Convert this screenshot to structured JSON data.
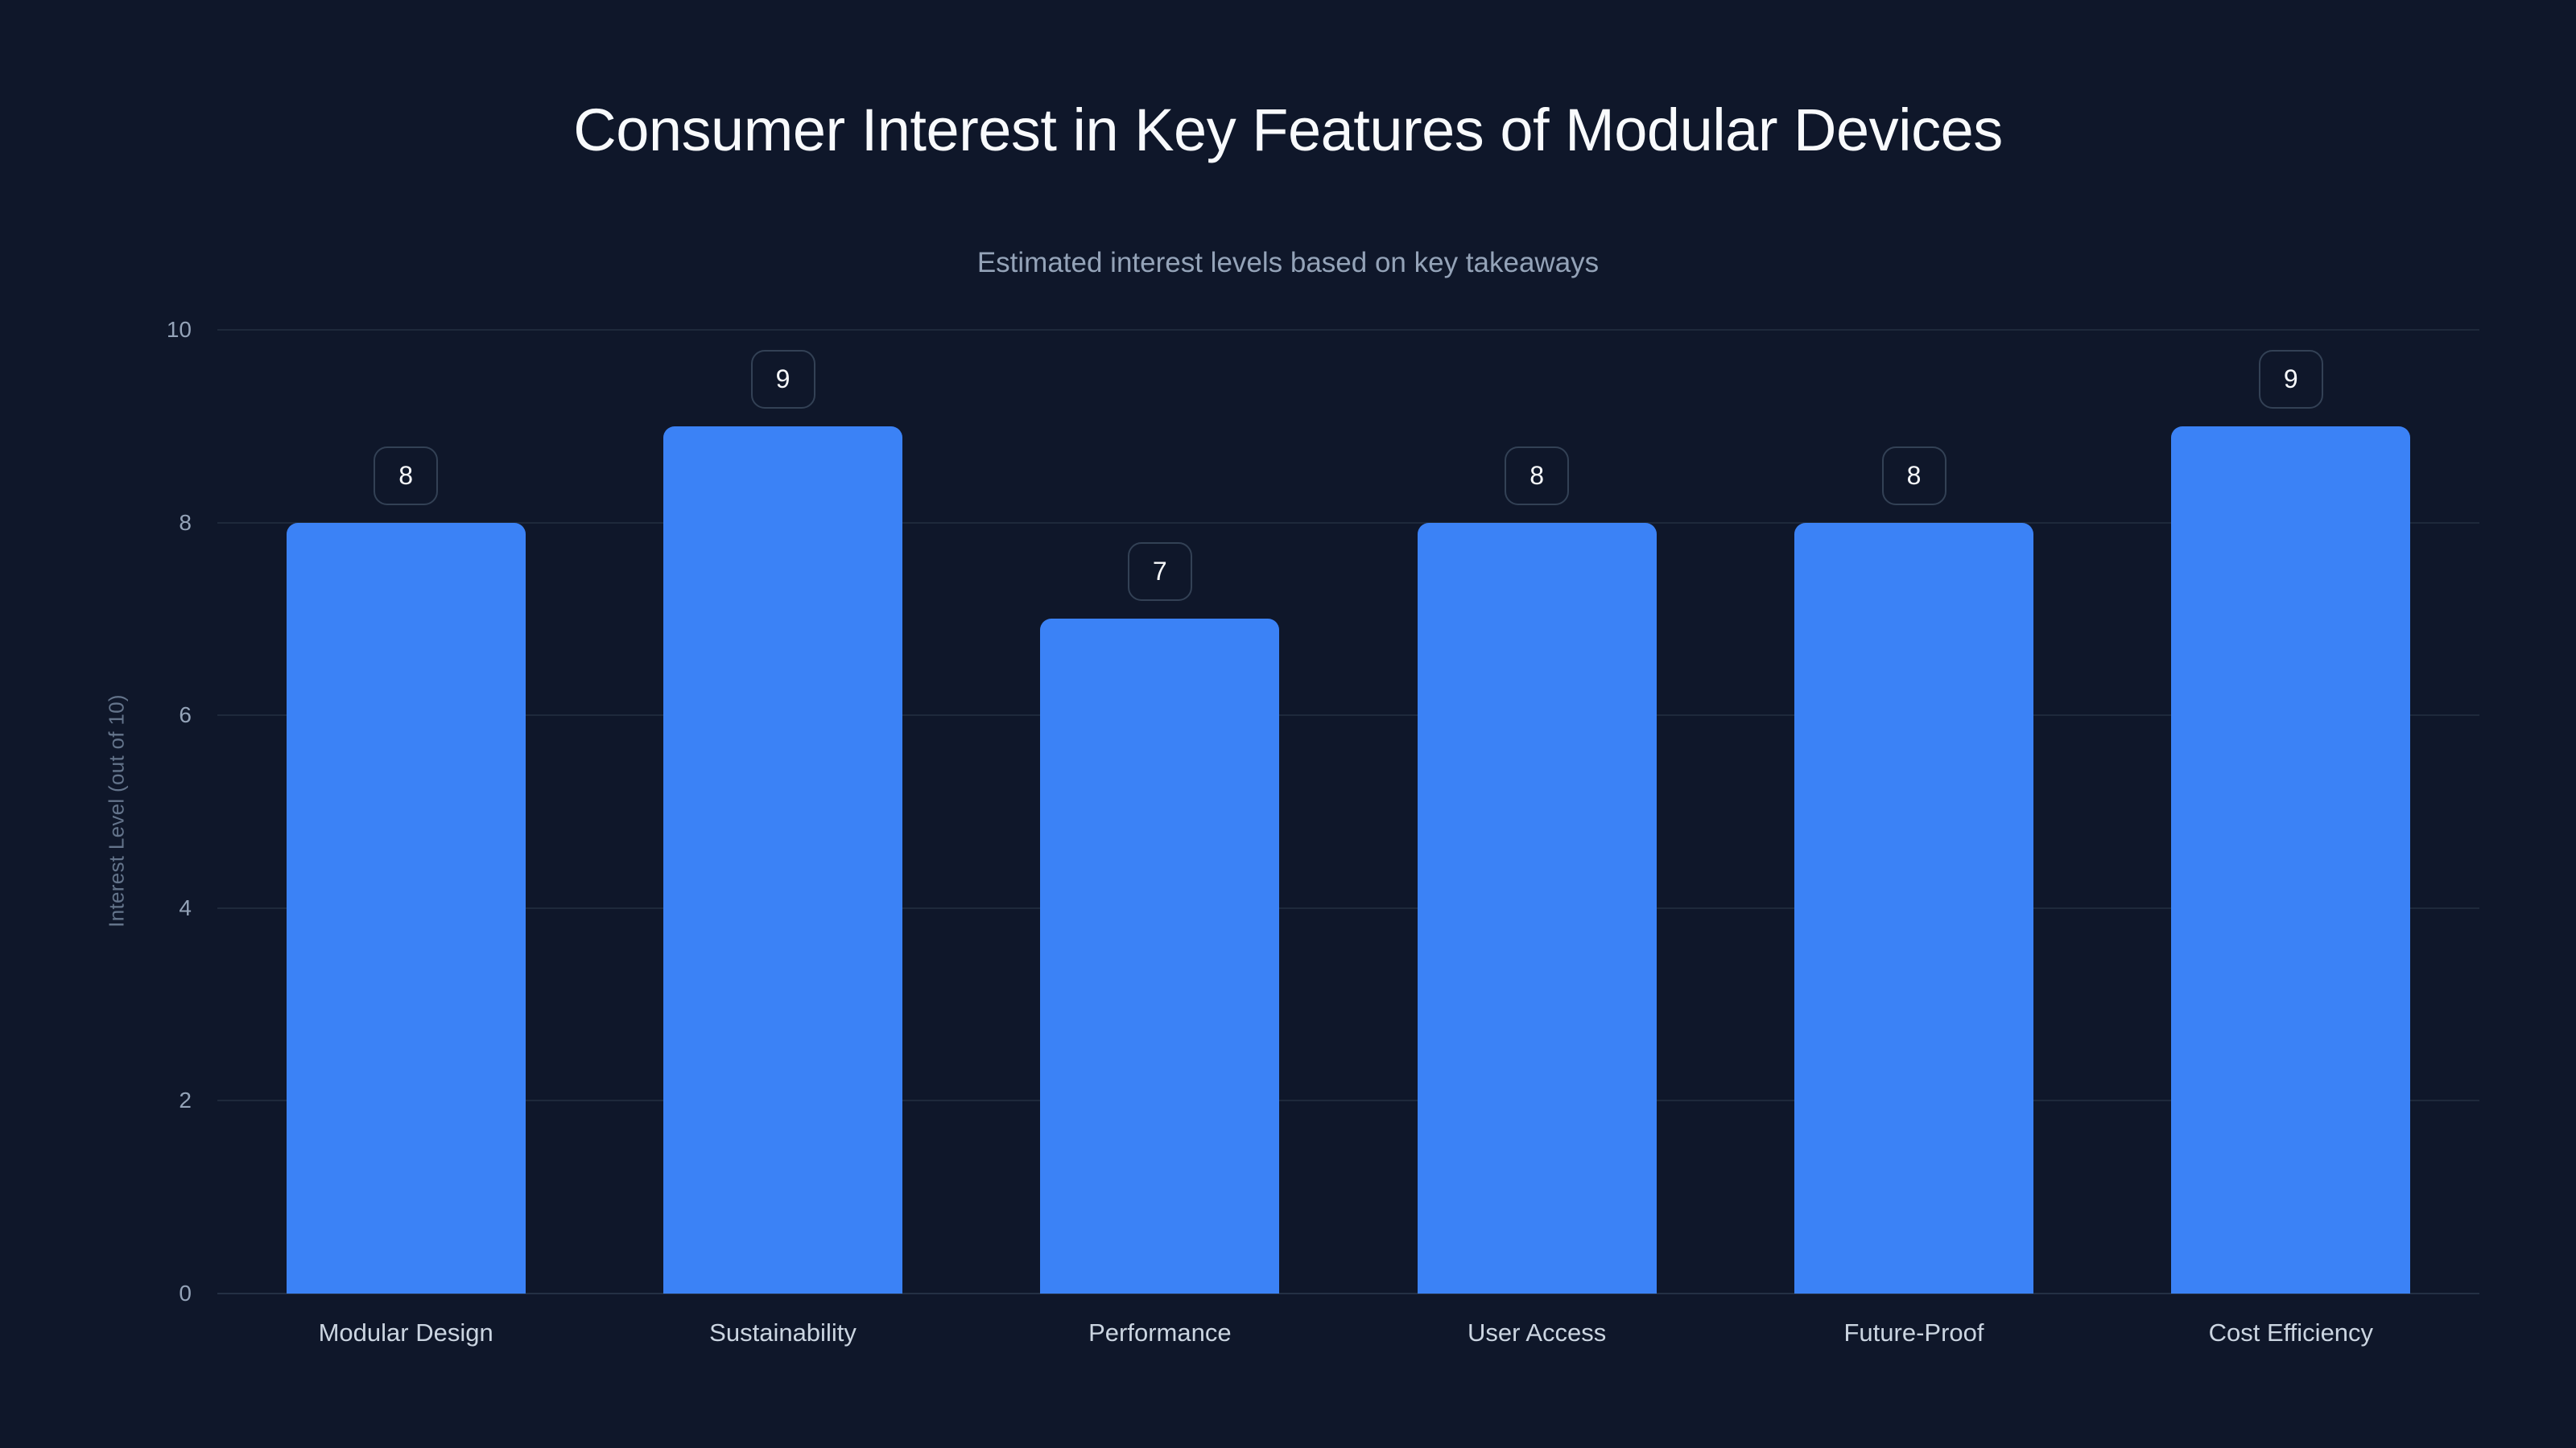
{
  "chart_data": {
    "type": "bar",
    "title": "Consumer Interest in Key Features of Modular Devices",
    "subtitle": "Estimated interest levels based on key takeaways",
    "xlabel": "",
    "ylabel": "Interest Level (out of 10)",
    "categories": [
      "Modular Design",
      "Sustainability",
      "Performance",
      "User Access",
      "Future-Proof",
      "Cost Efficiency"
    ],
    "values": [
      8,
      9,
      7,
      8,
      8,
      9
    ],
    "data_labels": [
      "8",
      "9",
      "7",
      "8",
      "8",
      "9"
    ],
    "ylim": [
      0,
      10
    ],
    "yticks": [
      "0",
      "2",
      "4",
      "6",
      "8",
      "10"
    ],
    "grid": true,
    "legend": null,
    "bar_color": "#3b82f6"
  },
  "colors": {
    "background": "#0f172a",
    "bar": "#3b82f6",
    "gridline": "#1e293b",
    "title": "#f8fafc",
    "subtitle": "#94a3b8"
  }
}
